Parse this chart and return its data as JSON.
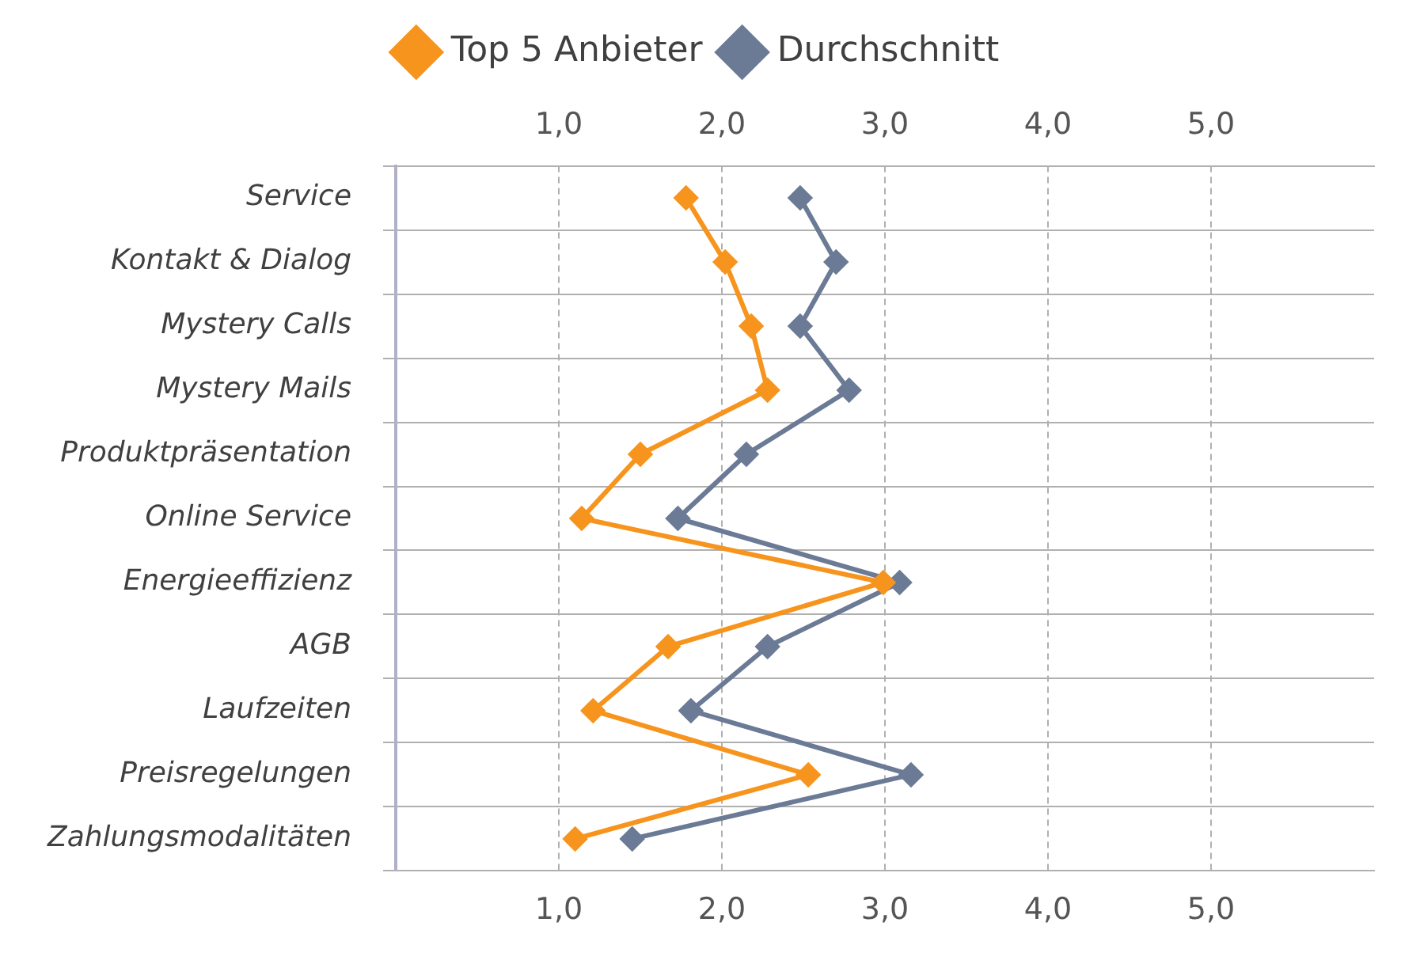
{
  "chart_data": {
    "type": "line",
    "orientation": "horizontal",
    "categories": [
      "Service",
      "Kontakt & Dialog",
      "Mystery Calls",
      "Mystery Mails",
      "Produktpräsentation",
      "Online Service",
      "Energieeffizienz",
      "AGB",
      "Laufzeiten",
      "Preisregelungen",
      "Zahlungsmodalitäten"
    ],
    "series": [
      {
        "name": "Top 5 Anbieter",
        "color": "#f7941d",
        "values": [
          1.78,
          2.02,
          2.18,
          2.28,
          1.5,
          1.14,
          2.99,
          1.67,
          1.21,
          2.53,
          1.1
        ]
      },
      {
        "name": "Durchschnitt",
        "color": "#6b7a95",
        "values": [
          2.48,
          2.7,
          2.48,
          2.78,
          2.15,
          1.73,
          3.09,
          2.28,
          1.81,
          3.16,
          1.45
        ]
      }
    ],
    "xlim": [
      0,
      6
    ],
    "xticks": [
      {
        "value": 1,
        "label": "1,0"
      },
      {
        "value": 2,
        "label": "2,0"
      },
      {
        "value": 3,
        "label": "3,0"
      },
      {
        "value": 4,
        "label": "4,0"
      },
      {
        "value": 5,
        "label": "5,0"
      }
    ],
    "x2lim": [
      0,
      6
    ],
    "x2ticks": [
      {
        "value": 1,
        "label": "1,0"
      },
      {
        "value": 2,
        "label": "2,0"
      },
      {
        "value": 3,
        "label": "3,0"
      },
      {
        "value": 4,
        "label": "4,0"
      },
      {
        "value": 5,
        "label": "5,0"
      }
    ],
    "grid": true,
    "legend": "top",
    "marker": "diamond",
    "line_style": "solid"
  }
}
